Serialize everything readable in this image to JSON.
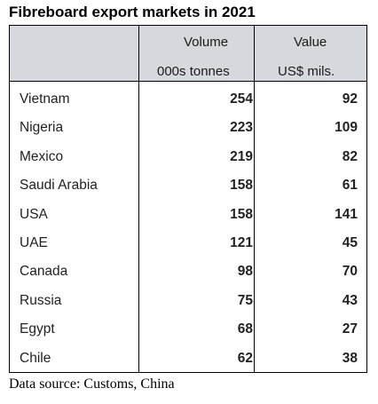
{
  "title": "Fibreboard export markets in 2021",
  "columns": {
    "volume": {
      "label": "Volume",
      "unit": "000s tonnes"
    },
    "value": {
      "label": "Value",
      "unit": "US$ mils."
    }
  },
  "source": "Data source: Customs, China",
  "chart_data": {
    "type": "table",
    "title": "Fibreboard export markets in 2021",
    "columns": [
      "Volume (000s tonnes)",
      "Value (US$ mils.)"
    ],
    "categories": [
      "Vietnam",
      "Nigeria",
      "Mexico",
      "Saudi Arabia",
      "USA",
      "UAE",
      "Canada",
      "Russia",
      "Egypt",
      "Chile"
    ],
    "series": [
      {
        "name": "Volume",
        "values": [
          254,
          223,
          219,
          158,
          158,
          121,
          98,
          75,
          68,
          62
        ]
      },
      {
        "name": "Value",
        "values": [
          92,
          109,
          82,
          61,
          141,
          45,
          70,
          43,
          27,
          38
        ]
      }
    ],
    "rows": [
      {
        "country": "Vietnam",
        "volume": "254",
        "value": "92"
      },
      {
        "country": "Nigeria",
        "volume": "223",
        "value": "109"
      },
      {
        "country": "Mexico",
        "volume": "219",
        "value": "82"
      },
      {
        "country": "Saudi Arabia",
        "volume": "158",
        "value": "61"
      },
      {
        "country": "USA",
        "volume": "158",
        "value": "141"
      },
      {
        "country": "UAE",
        "volume": "121",
        "value": "45"
      },
      {
        "country": "Canada",
        "volume": "98",
        "value": "70"
      },
      {
        "country": "Russia",
        "volume": "75",
        "value": "43"
      },
      {
        "country": "Egypt",
        "volume": "68",
        "value": "27"
      },
      {
        "country": "Chile",
        "volume": "62",
        "value": "38"
      }
    ]
  }
}
